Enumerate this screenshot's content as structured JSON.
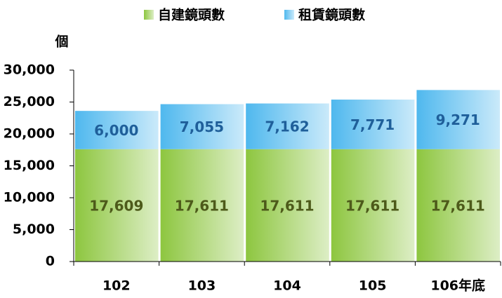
{
  "chart_data": {
    "type": "stacked_bar",
    "y_label": "個",
    "categories": [
      "102",
      "103",
      "104",
      "105",
      "106年底"
    ],
    "series": [
      {
        "name": "自建鏡頭數",
        "color": "#8dc63f",
        "label_color": "#4d5a1a",
        "values": [
          17609,
          17611,
          17611,
          17611,
          17611
        ],
        "value_labels": [
          "17,609",
          "17,611",
          "17,611",
          "17,611",
          "17,611"
        ]
      },
      {
        "name": "租賃鏡頭數",
        "color": "#4fb8ee",
        "label_color": "#1f5f9a",
        "values": [
          6000,
          7055,
          7162,
          7771,
          9271
        ],
        "value_labels": [
          "6,000",
          "7,055",
          "7,162",
          "7,771",
          "9,271"
        ]
      }
    ],
    "ylim": [
      0,
      30000
    ],
    "yticks": [
      0,
      {
        "value": 5000,
        "label": "5,000"
      },
      {
        "value": 10000,
        "label": "10,000"
      },
      {
        "value": 15000,
        "label": "15,000"
      },
      {
        "value": 20000,
        "label": "20,000"
      },
      {
        "value": 25000,
        "label": "25,000"
      },
      {
        "value": 30000,
        "label": "30,000"
      }
    ],
    "legend": "top"
  }
}
